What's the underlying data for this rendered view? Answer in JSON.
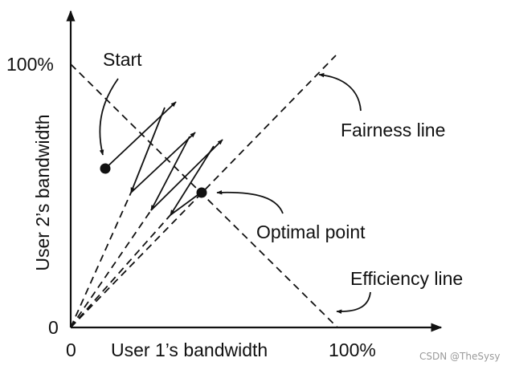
{
  "diagram": {
    "labels": {
      "start": "Start",
      "fairness_line": "Fairness line",
      "optimal_point": "Optimal point",
      "efficiency_line": "Efficiency line"
    },
    "axes": {
      "x_label": "User 1’s bandwidth",
      "y_label": "User 2’s bandwidth",
      "x_origin": "0",
      "y_origin": "0",
      "x_max": "100%",
      "y_max": "100%"
    },
    "colors": {
      "ink": "#111111",
      "watermark": "#9a9a9a"
    }
  },
  "watermark": "CSDN @TheSysy"
}
